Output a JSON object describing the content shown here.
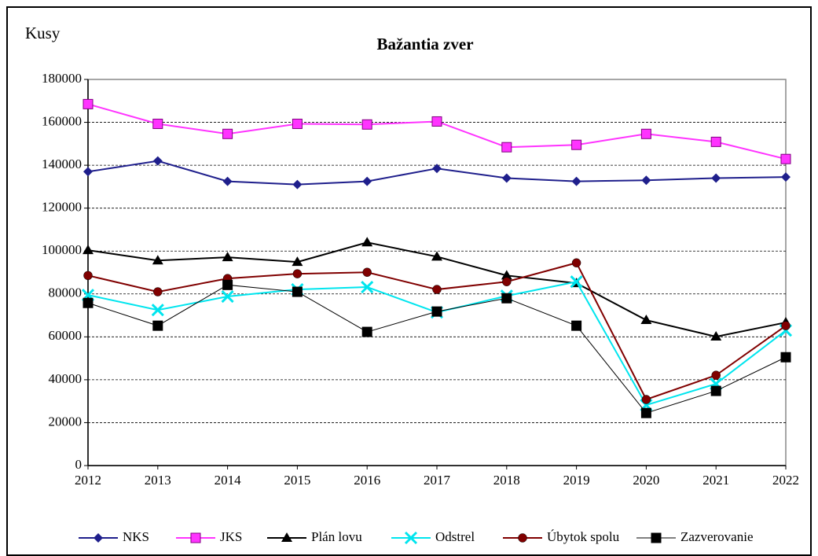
{
  "chart_data": {
    "type": "line",
    "title": "Bažantia zver",
    "y_label": "Kusy",
    "categories": [
      "2012",
      "2013",
      "2014",
      "2015",
      "2016",
      "2017",
      "2018",
      "2019",
      "2020",
      "2021",
      "2022"
    ],
    "ylim": [
      0,
      180000
    ],
    "yticks": [
      0,
      20000,
      40000,
      60000,
      80000,
      100000,
      120000,
      140000,
      160000,
      180000
    ],
    "grid": true,
    "legend": "bottom",
    "series": [
      {
        "name": "NKS",
        "color": "#1f1f8c",
        "marker": "diamond",
        "line_width": 2,
        "values": [
          137000,
          142000,
          132500,
          131000,
          132500,
          138500,
          134000,
          132500,
          133000,
          134000,
          134500
        ]
      },
      {
        "name": "JKS",
        "color": "#ff33ff",
        "marker": "square",
        "line_width": 2,
        "values": [
          168500,
          159300,
          154600,
          159300,
          159000,
          160400,
          148400,
          149500,
          154600,
          150900,
          142900
        ]
      },
      {
        "name": "Plán lovu",
        "color": "#000000",
        "marker": "triangle",
        "line_width": 2,
        "values": [
          100400,
          95600,
          97100,
          94900,
          104000,
          97400,
          88600,
          85000,
          67800,
          60100,
          66700
        ]
      },
      {
        "name": "Odstrel",
        "color": "#00e5ee",
        "marker": "x",
        "line_width": 2,
        "values": [
          79500,
          72500,
          78800,
          82100,
          83200,
          71400,
          79100,
          85700,
          28200,
          38100,
          63000
        ]
      },
      {
        "name": "Úbytok spolu",
        "color": "#800000",
        "marker": "circle",
        "line_width": 2,
        "values": [
          88600,
          81000,
          87200,
          89400,
          90100,
          82100,
          85700,
          94500,
          30800,
          42100,
          65200
        ]
      },
      {
        "name": "Zazverovanie",
        "color": "#000000",
        "marker": "square",
        "line_width": 1,
        "values": [
          75800,
          65200,
          84200,
          81000,
          62300,
          71800,
          78000,
          65200,
          24500,
          34800,
          50500
        ]
      }
    ]
  }
}
